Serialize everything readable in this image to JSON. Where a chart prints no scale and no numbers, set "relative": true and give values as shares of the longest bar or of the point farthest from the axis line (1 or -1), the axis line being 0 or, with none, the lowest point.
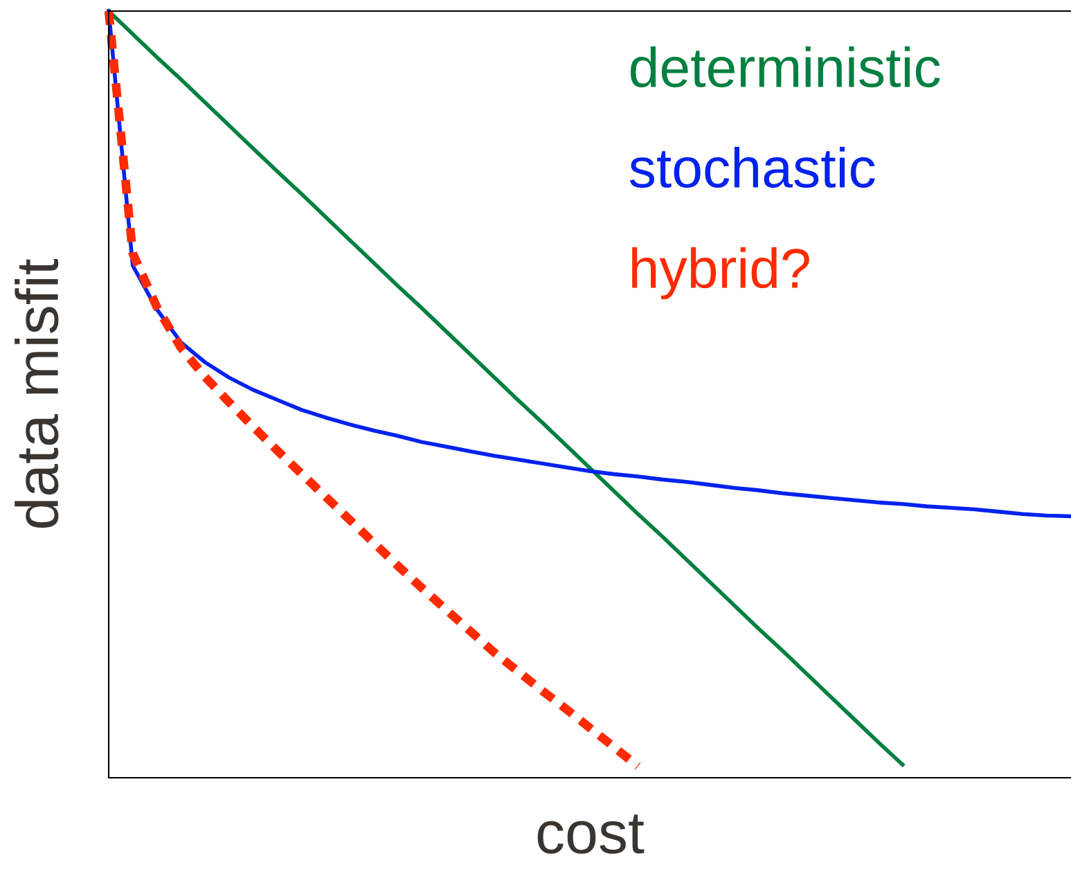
{
  "chart_data": {
    "type": "line",
    "relative": true,
    "xlabel": "cost",
    "ylabel": "data misfit",
    "marker": "none",
    "categories": [
      null,
      null,
      null,
      null,
      null,
      null,
      null,
      null,
      null,
      null,
      null,
      null,
      null,
      null,
      null,
      null,
      null,
      null,
      null,
      null,
      null,
      null,
      null,
      null,
      null,
      null,
      null,
      null,
      null,
      null,
      null,
      null,
      null,
      null,
      null,
      null,
      null,
      null,
      null,
      null,
      null
    ],
    "series": [
      {
        "name": "deterministic",
        "color": "#008040",
        "line_style": "solid",
        "values": [
          1.0,
          0.97,
          0.94,
          0.911,
          0.881,
          0.851,
          0.821,
          0.791,
          0.762,
          0.732,
          0.702,
          0.672,
          0.642,
          0.613,
          0.583,
          0.553,
          0.523,
          0.493,
          0.464,
          0.434,
          0.404,
          0.374,
          0.344,
          0.315,
          0.285,
          0.255,
          0.225,
          0.195,
          0.166,
          0.136,
          0.106,
          0.076,
          0.046,
          0.017,
          null,
          null,
          null,
          null,
          null,
          null,
          null
        ]
      },
      {
        "name": "stochastic",
        "color": "#0022ee",
        "line_style": "solid",
        "values": [
          1.0,
          0.668,
          0.611,
          0.568,
          0.542,
          0.522,
          0.506,
          0.493,
          0.48,
          0.47,
          0.461,
          0.453,
          0.446,
          0.438,
          0.432,
          0.426,
          0.42,
          0.415,
          0.41,
          0.405,
          0.4,
          0.396,
          0.393,
          0.389,
          0.386,
          0.382,
          0.378,
          0.375,
          0.371,
          0.368,
          0.365,
          0.362,
          0.359,
          0.357,
          0.354,
          0.352,
          0.35,
          0.347,
          0.344,
          0.342,
          0.341
        ]
      },
      {
        "name": "hybrid?",
        "color": "#ff2a00",
        "line_style": "dashed",
        "values": [
          1.0,
          0.684,
          0.614,
          0.561,
          0.523,
          0.49,
          0.458,
          0.427,
          0.397,
          0.367,
          0.337,
          0.307,
          0.277,
          0.248,
          0.22,
          0.192,
          0.164,
          0.139,
          0.114,
          0.09,
          0.065,
          0.04,
          0.015,
          null,
          null,
          null,
          null,
          null,
          null,
          null,
          null,
          null,
          null,
          null,
          null,
          null,
          null,
          null,
          null,
          null,
          null
        ]
      }
    ]
  }
}
